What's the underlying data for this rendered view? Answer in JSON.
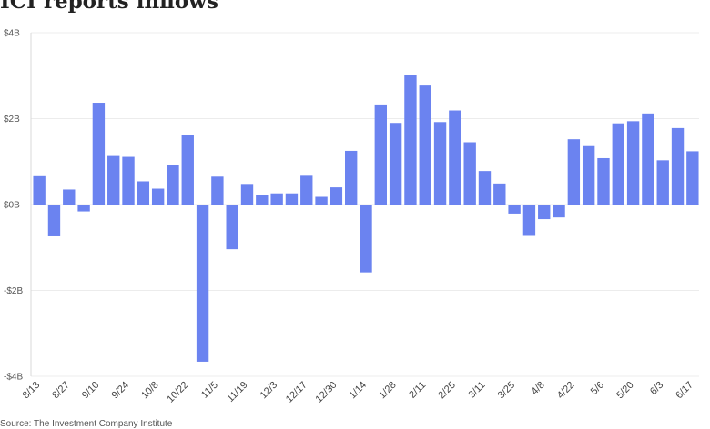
{
  "chart_data": {
    "type": "bar",
    "title": "ICI reports inflows",
    "source": "Source: The Investment Company Institute",
    "bar_color": "#6b83f0",
    "ylim": [
      -4,
      4
    ],
    "y_ticks": [
      {
        "value": 4,
        "label": "$4B"
      },
      {
        "value": 2,
        "label": "$2B"
      },
      {
        "value": 0,
        "label": "$0B"
      },
      {
        "value": -2,
        "label": "-$2B"
      },
      {
        "value": -4,
        "label": "-$4B"
      }
    ],
    "grid": true,
    "x_tick_labels": [
      {
        "index": 0,
        "label": "8/13"
      },
      {
        "index": 2,
        "label": "8/27"
      },
      {
        "index": 4,
        "label": "9/10"
      },
      {
        "index": 6,
        "label": "9/24"
      },
      {
        "index": 8,
        "label": "10/8"
      },
      {
        "index": 10,
        "label": "10/22"
      },
      {
        "index": 12,
        "label": "11/5"
      },
      {
        "index": 14,
        "label": "11/19"
      },
      {
        "index": 16,
        "label": "12/3"
      },
      {
        "index": 18,
        "label": "12/17"
      },
      {
        "index": 20,
        "label": "12/30"
      },
      {
        "index": 22,
        "label": "1/14"
      },
      {
        "index": 24,
        "label": "1/28"
      },
      {
        "index": 26,
        "label": "2/11"
      },
      {
        "index": 28,
        "label": "2/25"
      },
      {
        "index": 30,
        "label": "3/11"
      },
      {
        "index": 32,
        "label": "3/25"
      },
      {
        "index": 34,
        "label": "4/8"
      },
      {
        "index": 36,
        "label": "4/22"
      },
      {
        "index": 38,
        "label": "5/6"
      },
      {
        "index": 40,
        "label": "5/20"
      },
      {
        "index": 42,
        "label": "6/3"
      },
      {
        "index": 44,
        "label": "6/17"
      }
    ],
    "values": [
      0.66,
      -0.74,
      0.35,
      -0.16,
      2.37,
      1.13,
      1.11,
      0.54,
      0.37,
      0.91,
      1.62,
      -3.66,
      0.65,
      -1.04,
      0.48,
      0.22,
      0.26,
      0.26,
      0.67,
      0.18,
      0.4,
      1.25,
      -1.58,
      2.33,
      1.9,
      3.02,
      2.77,
      1.92,
      2.19,
      1.45,
      0.78,
      0.49,
      -0.21,
      -0.73,
      -0.34,
      -0.3,
      1.52,
      1.36,
      1.08,
      1.89,
      1.94,
      2.12,
      1.03,
      1.78,
      1.24
    ]
  }
}
